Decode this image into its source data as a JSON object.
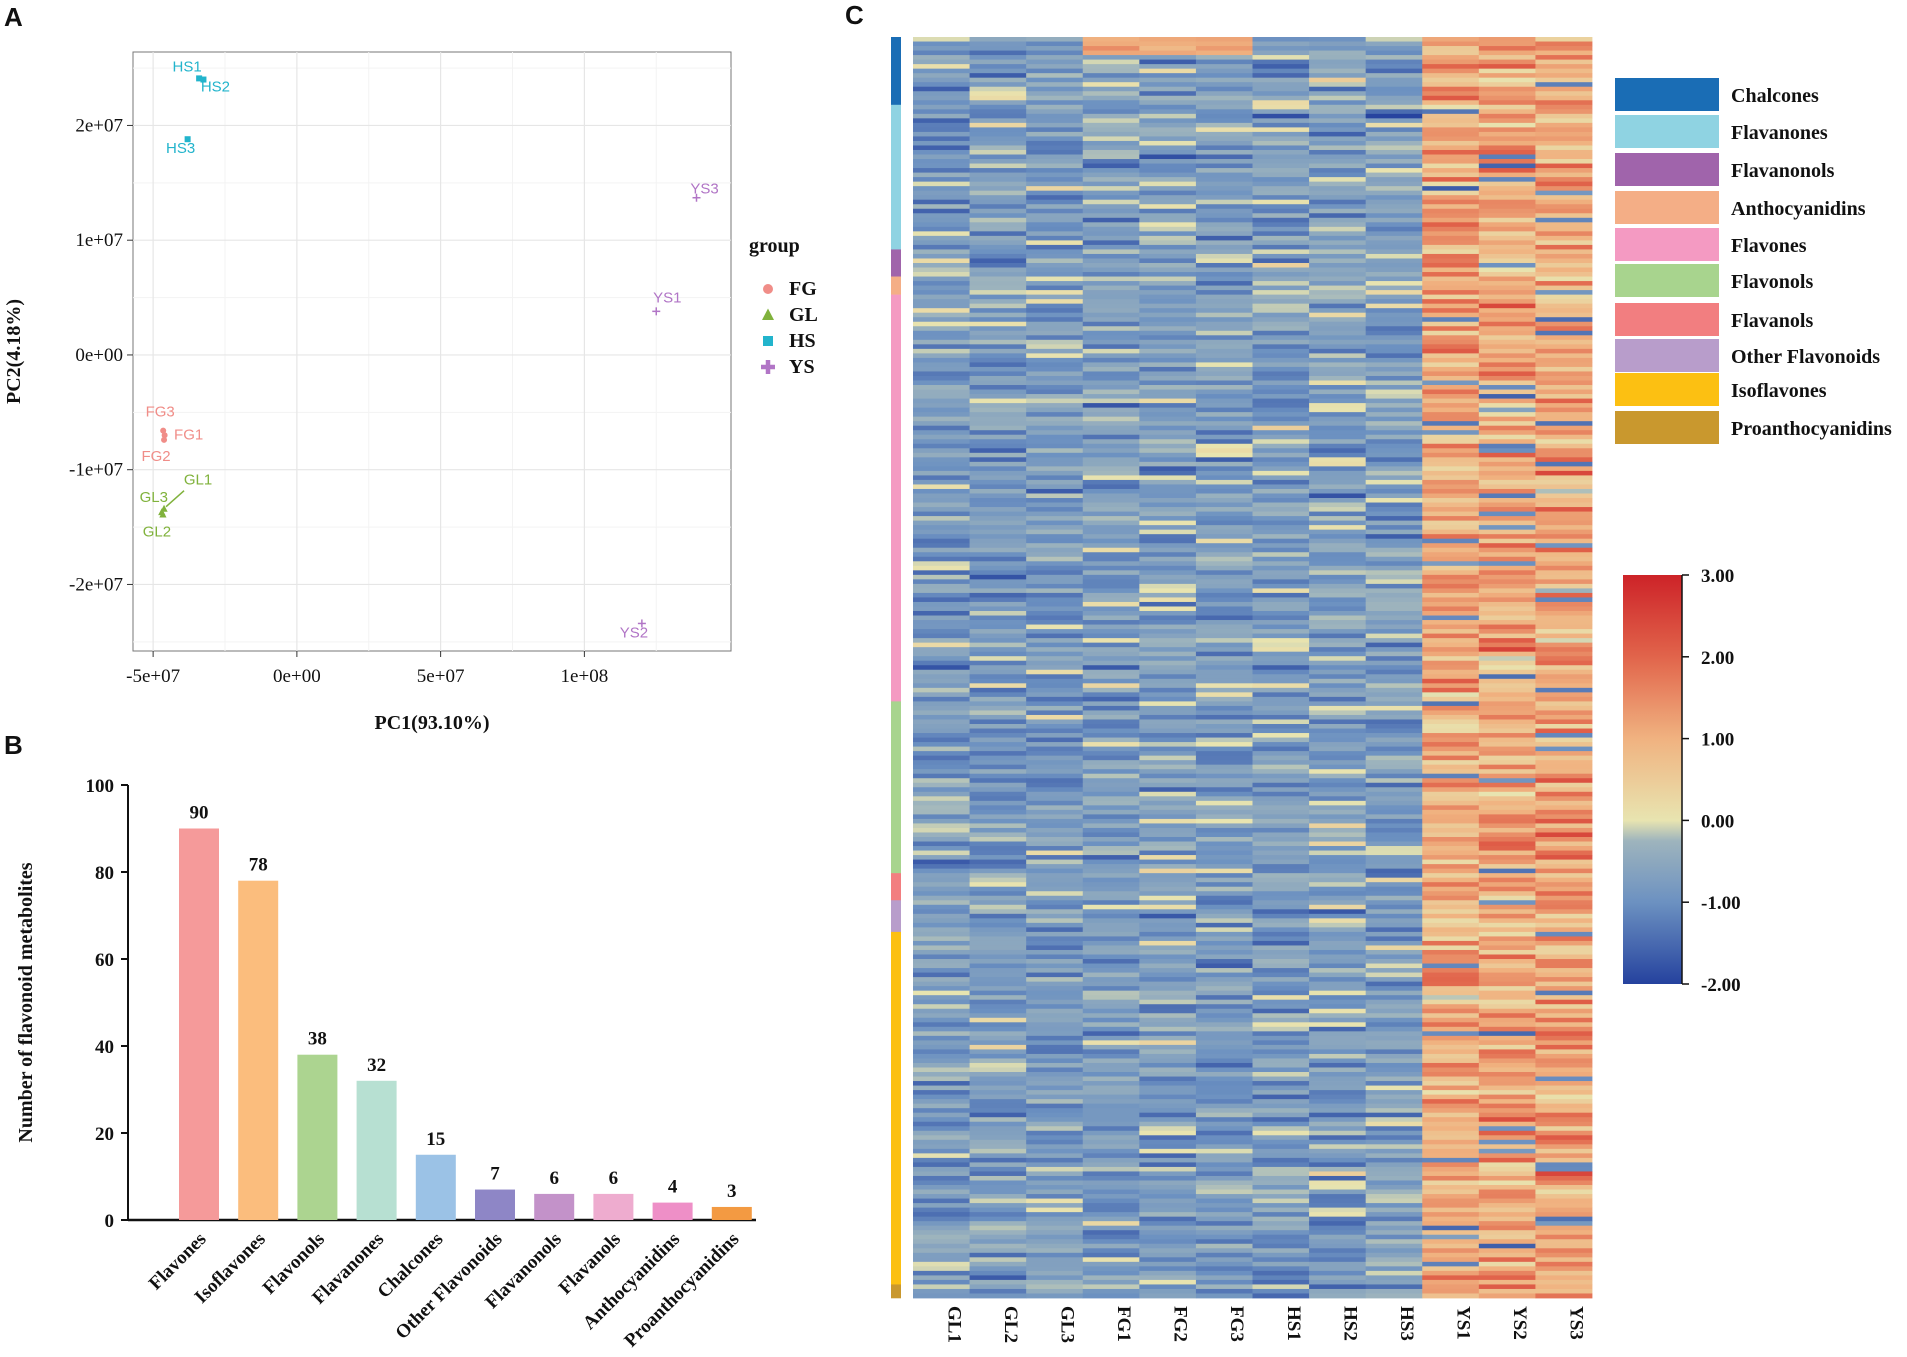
{
  "panels": {
    "a": "A",
    "b": "B",
    "c": "C"
  },
  "chart_data": [
    {
      "type": "scatter",
      "xlabel": "PC1(93.10%)",
      "ylabel": "PC2(4.18%)",
      "xlim": [
        -57000000,
        151000000
      ],
      "ylim": [
        -25800000,
        26400000
      ],
      "xticks": [
        -50000000,
        0,
        50000000,
        100000000
      ],
      "xtick_labels": [
        "-5e+07",
        "0e+00",
        "5e+07",
        "1e+08"
      ],
      "yticks": [
        20000000,
        10000000,
        0,
        -10000000,
        -20000000
      ],
      "ytick_labels": [
        "2e+07",
        "1e+07",
        "0e+00",
        "-1e+07",
        "-2e+07"
      ],
      "legend_title": "group",
      "legend": [
        {
          "name": "FG",
          "color": "#f08d88",
          "marker": "circle"
        },
        {
          "name": "GL",
          "color": "#80b23c",
          "marker": "triangle"
        },
        {
          "name": "HS",
          "color": "#22b4cc",
          "marker": "square"
        },
        {
          "name": "YS",
          "color": "#b175c6",
          "marker": "plus"
        }
      ],
      "points": [
        {
          "label": "HS1",
          "group": "HS",
          "x": -34000000,
          "y": 24100000
        },
        {
          "label": "HS2",
          "group": "HS",
          "x": -32500000,
          "y": 24000000
        },
        {
          "label": "HS3",
          "group": "HS",
          "x": -38000000,
          "y": 18800000
        },
        {
          "label": "YS3",
          "group": "YS",
          "x": 139000000,
          "y": 13700000
        },
        {
          "label": "YS1",
          "group": "YS",
          "x": 125000000,
          "y": 3800000
        },
        {
          "label": "YS2",
          "group": "YS",
          "x": 120000000,
          "y": -23400000
        },
        {
          "label": "FG3",
          "group": "FG",
          "x": -46500000,
          "y": -6600000
        },
        {
          "label": "FG1",
          "group": "FG",
          "x": -46000000,
          "y": -7000000
        },
        {
          "label": "FG2",
          "group": "FG",
          "x": -46200000,
          "y": -7400000
        },
        {
          "label": "GL1",
          "group": "GL",
          "x": -46200000,
          "y": -13400000
        },
        {
          "label": "GL3",
          "group": "GL",
          "x": -47000000,
          "y": -13700000
        },
        {
          "label": "GL2",
          "group": "GL",
          "x": -46600000,
          "y": -13900000
        }
      ]
    },
    {
      "type": "bar",
      "ylabel": "Number of flavonoid metabolites",
      "ylim": [
        0,
        100
      ],
      "yticks": [
        0,
        20,
        40,
        60,
        80,
        100
      ],
      "categories": [
        "Flavones",
        "Isoflavones",
        "Flavonols",
        "Flavanones",
        "Chalcones",
        "Other Flavonoids",
        "Flavanonols",
        "Flavanols",
        "Anthocyanidins",
        "Proanthocyanidins"
      ],
      "values": [
        90,
        78,
        38,
        32,
        15,
        7,
        6,
        6,
        4,
        3
      ],
      "colors": [
        "#f59a9a",
        "#fbbd7d",
        "#acd490",
        "#b7e0d2",
        "#9bc2e6",
        "#8e86c6",
        "#c392c9",
        "#eeaccf",
        "#ee8fc7",
        "#f39a42"
      ]
    },
    {
      "type": "heatmap",
      "columns": [
        "GL1",
        "GL2",
        "GL3",
        "FG1",
        "FG2",
        "FG3",
        "HS1",
        "HS2",
        "HS3",
        "YS1",
        "YS2",
        "YS3"
      ],
      "scale_min": -2.0,
      "scale_max": 3.0,
      "colorbar_ticks": [
        "3.00",
        "2.00",
        "1.00",
        "0.00",
        "-1.00",
        "-2.00"
      ],
      "colorbar_values": [
        3,
        2,
        1,
        0,
        -1,
        -2
      ],
      "classes": [
        {
          "name": "Chalcones",
          "color": "#1a6db5",
          "count": 15
        },
        {
          "name": "Flavanones",
          "color": "#8fd3e2",
          "count": 32
        },
        {
          "name": "Flavanonols",
          "color": "#a064ab",
          "count": 6
        },
        {
          "name": "Anthocyanidins",
          "color": "#f4ae86",
          "count": 4
        },
        {
          "name": "Flavones",
          "color": "#f49ac2",
          "count": 90
        },
        {
          "name": "Flavonols",
          "color": "#a8d48e",
          "count": 38
        },
        {
          "name": "Flavanols",
          "color": "#f27e80",
          "count": 6
        },
        {
          "name": "Other Flavonoids",
          "color": "#b89dcb",
          "count": 7
        },
        {
          "name": "Isoflavones",
          "color": "#fcc012",
          "count": 78
        },
        {
          "name": "Proanthocyanidins",
          "color": "#c9982e",
          "count": 3
        }
      ]
    }
  ]
}
